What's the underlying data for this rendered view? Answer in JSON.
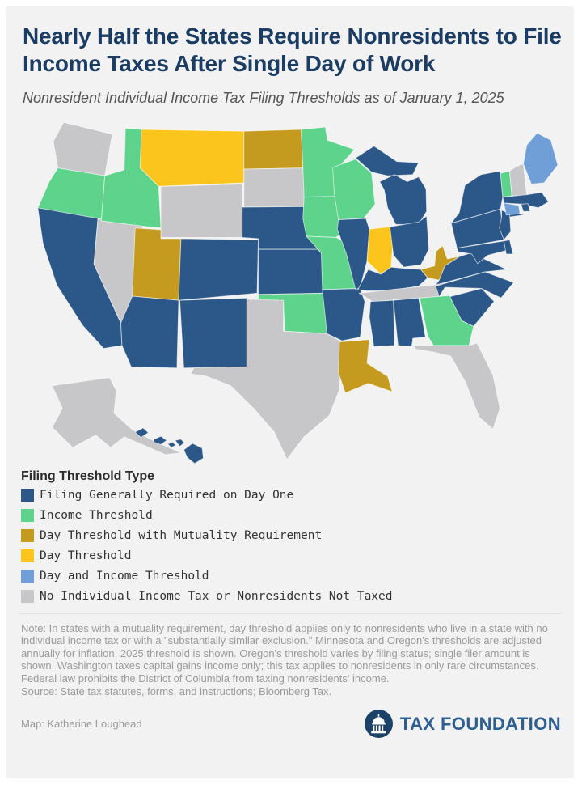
{
  "header": {
    "title": "Nearly Half the States Require Nonresidents to File Income Taxes After Single Day of Work",
    "subtitle": "Nonresident Individual Income Tax Filing Thresholds as of January 1, 2025"
  },
  "legend": {
    "heading": "Filing Threshold Type",
    "categories": [
      {
        "id": "day_one",
        "label": "Filing Generally Required on Day One",
        "color": "#2b5888"
      },
      {
        "id": "income",
        "label": "Income Threshold",
        "color": "#5dd38c"
      },
      {
        "id": "mutuality",
        "label": "Day Threshold with Mutuality Requirement",
        "color": "#c49b1f"
      },
      {
        "id": "day",
        "label": "Day Threshold",
        "color": "#fcc51d"
      },
      {
        "id": "day_income",
        "label": "Day and Income Threshold",
        "color": "#6f9fd6"
      },
      {
        "id": "none",
        "label": "No Individual Income Tax or Nonresidents Not Taxed",
        "color": "#c7c7c9"
      }
    ]
  },
  "map": {
    "stroke_color": "#ffffff",
    "states": {
      "WA": "none",
      "OR": "income",
      "CA": "day_one",
      "NV": "none",
      "ID": "income",
      "MT": "day",
      "WY": "none",
      "UT": "mutuality",
      "CO": "day_one",
      "AZ": "day_one",
      "NM": "day_one",
      "ND": "mutuality",
      "SD": "none",
      "NE": "day_one",
      "KS": "day_one",
      "OK": "income",
      "TX": "none",
      "MN": "income",
      "IA": "income",
      "MO": "income",
      "AR": "day_one",
      "LA": "mutuality",
      "WI": "income",
      "IL": "day_one",
      "MI": "day_one",
      "IN": "day",
      "OH": "day_one",
      "KY": "day_one",
      "TN": "none",
      "WV": "mutuality",
      "VA": "day_one",
      "NC": "day_one",
      "SC": "day_one",
      "GA": "income",
      "AL": "day_one",
      "MS": "day_one",
      "FL": "none",
      "PA": "day_one",
      "NY": "day_one",
      "NJ": "day_one",
      "MD": "day_one",
      "DE": "day_one",
      "VT": "income",
      "NH": "none",
      "ME": "day_income",
      "MA": "day_one",
      "RI": "day_one",
      "CT": "day_income",
      "AK": "none",
      "HI": "day_one"
    }
  },
  "footer": {
    "note": "Note: In states with a mutuality requirement, day threshold applies only to nonresidents who live in a state with no individual income tax or with a \"substantially similar exclusion.\" Minnesota and Oregon's thresholds are adjusted annually for inflation; 2025 threshold is shown. Oregon's threshold varies by filing status; single filer amount is shown. Washington taxes capital gains income only; this tax applies to nonresidents in only rare circumstances. Federal law prohibits the District of Columbia from taxing nonresidents' income.",
    "source": "Source: State tax statutes, forms, and instructions; Bloomberg Tax.",
    "credit": "Map: Katherine Loughead",
    "logo_text": "TAX FOUNDATION"
  }
}
